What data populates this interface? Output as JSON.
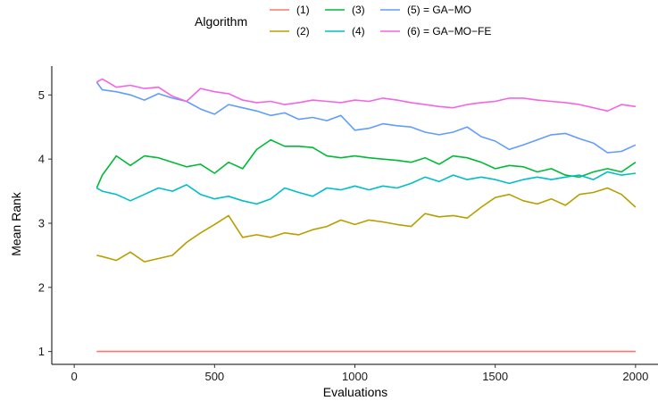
{
  "chart_data": {
    "type": "line",
    "xlabel": "Evaluations",
    "ylabel": "Mean Rank",
    "xlim": [
      -80,
      2080
    ],
    "ylim": [
      0.8,
      5.45
    ],
    "xticks": [
      0,
      500,
      1000,
      1500,
      2000
    ],
    "yticks": [
      1,
      2,
      3,
      4,
      5
    ],
    "grid": false,
    "legend": {
      "title": "Algorithm",
      "placement": "top",
      "entries": [
        {
          "label": "(1)",
          "series": 0
        },
        {
          "label": "(2)",
          "series": 1
        },
        {
          "label": "(3)",
          "series": 2
        },
        {
          "label": "(4)",
          "series": 3
        },
        {
          "label": "(5) = GA−MO",
          "series": 4
        },
        {
          "label": "(6) = GA−MO−FE",
          "series": 5
        }
      ]
    },
    "x": [
      80,
      100,
      150,
      200,
      250,
      300,
      350,
      400,
      450,
      500,
      550,
      600,
      650,
      700,
      750,
      800,
      850,
      900,
      950,
      1000,
      1050,
      1100,
      1150,
      1200,
      1250,
      1300,
      1350,
      1400,
      1450,
      1500,
      1550,
      1600,
      1650,
      1700,
      1750,
      1800,
      1850,
      1900,
      1950,
      2000
    ],
    "series": [
      {
        "name": "(1)",
        "color": "#f8766d",
        "values": [
          1.0,
          1.0,
          1.0,
          1.0,
          1.0,
          1.0,
          1.0,
          1.0,
          1.0,
          1.0,
          1.0,
          1.0,
          1.0,
          1.0,
          1.0,
          1.0,
          1.0,
          1.0,
          1.0,
          1.0,
          1.0,
          1.0,
          1.0,
          1.0,
          1.0,
          1.0,
          1.0,
          1.0,
          1.0,
          1.0,
          1.0,
          1.0,
          1.0,
          1.0,
          1.0,
          1.0,
          1.0,
          1.0,
          1.0,
          1.0
        ]
      },
      {
        "name": "(2)",
        "color": "#b79f00",
        "values": [
          2.5,
          2.48,
          2.42,
          2.55,
          2.4,
          2.45,
          2.5,
          2.7,
          2.85,
          2.98,
          3.12,
          2.78,
          2.82,
          2.78,
          2.85,
          2.82,
          2.9,
          2.95,
          3.05,
          2.98,
          3.05,
          3.02,
          2.98,
          2.95,
          3.15,
          3.1,
          3.12,
          3.08,
          3.25,
          3.4,
          3.45,
          3.35,
          3.3,
          3.38,
          3.28,
          3.45,
          3.48,
          3.55,
          3.45,
          3.25
        ]
      },
      {
        "name": "(3)",
        "color": "#00ba38",
        "values": [
          3.55,
          3.75,
          4.05,
          3.9,
          4.05,
          4.02,
          3.95,
          3.88,
          3.92,
          3.78,
          3.95,
          3.85,
          4.15,
          4.3,
          4.2,
          4.2,
          4.18,
          4.05,
          4.02,
          4.05,
          4.02,
          4.0,
          3.98,
          3.95,
          4.02,
          3.92,
          4.05,
          4.02,
          3.95,
          3.85,
          3.9,
          3.88,
          3.8,
          3.85,
          3.75,
          3.72,
          3.8,
          3.85,
          3.8,
          3.95
        ]
      },
      {
        "name": "(4)",
        "color": "#00bfc4",
        "values": [
          3.55,
          3.5,
          3.45,
          3.35,
          3.45,
          3.55,
          3.5,
          3.6,
          3.45,
          3.38,
          3.42,
          3.35,
          3.3,
          3.38,
          3.55,
          3.48,
          3.42,
          3.55,
          3.52,
          3.58,
          3.52,
          3.58,
          3.55,
          3.62,
          3.72,
          3.65,
          3.75,
          3.68,
          3.72,
          3.68,
          3.62,
          3.68,
          3.72,
          3.68,
          3.72,
          3.75,
          3.68,
          3.8,
          3.75,
          3.78
        ]
      },
      {
        "name": "(5) = GA−MO",
        "color": "#619cff",
        "values": [
          5.2,
          5.08,
          5.05,
          5.0,
          4.92,
          5.02,
          4.95,
          4.9,
          4.78,
          4.7,
          4.85,
          4.8,
          4.75,
          4.68,
          4.72,
          4.62,
          4.65,
          4.6,
          4.68,
          4.45,
          4.48,
          4.55,
          4.52,
          4.5,
          4.42,
          4.38,
          4.42,
          4.5,
          4.35,
          4.28,
          4.15,
          4.22,
          4.3,
          4.38,
          4.4,
          4.32,
          4.25,
          4.1,
          4.12,
          4.22
        ]
      },
      {
        "name": "(6) = GA−MO−FE",
        "color": "#f564e3",
        "values": [
          5.2,
          5.25,
          5.12,
          5.15,
          5.1,
          5.12,
          4.98,
          4.9,
          5.1,
          5.05,
          5.02,
          4.92,
          4.88,
          4.9,
          4.85,
          4.88,
          4.92,
          4.9,
          4.88,
          4.92,
          4.9,
          4.95,
          4.92,
          4.88,
          4.85,
          4.82,
          4.8,
          4.85,
          4.88,
          4.9,
          4.95,
          4.95,
          4.92,
          4.9,
          4.88,
          4.85,
          4.8,
          4.75,
          4.85,
          4.82
        ]
      }
    ]
  }
}
